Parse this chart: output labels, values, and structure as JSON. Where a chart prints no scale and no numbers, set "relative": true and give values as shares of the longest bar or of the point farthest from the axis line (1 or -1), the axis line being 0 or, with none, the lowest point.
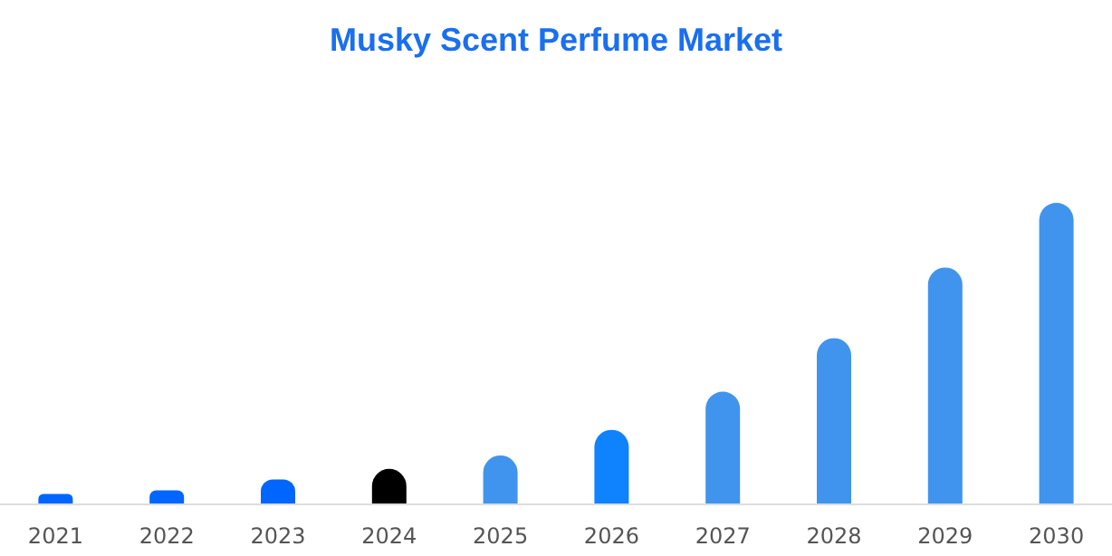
{
  "chart_data": {
    "type": "bar",
    "title": "Musky Scent Perfume Market",
    "relative": true,
    "categories": [
      "2021",
      "2022",
      "2023",
      "2024",
      "2025",
      "2026",
      "2027",
      "2028",
      "2029",
      "2030"
    ],
    "values": [
      0.032,
      0.044,
      0.08,
      0.115,
      0.16,
      0.245,
      0.372,
      0.55,
      0.785,
      1
    ],
    "colors": [
      "#0066ff",
      "#0066ff",
      "#0066ff",
      "#000000",
      "#4094ee",
      "#0f82fd",
      "#4094ee",
      "#4094ee",
      "#4094ee",
      "#4094ee"
    ],
    "data_labels": false
  }
}
